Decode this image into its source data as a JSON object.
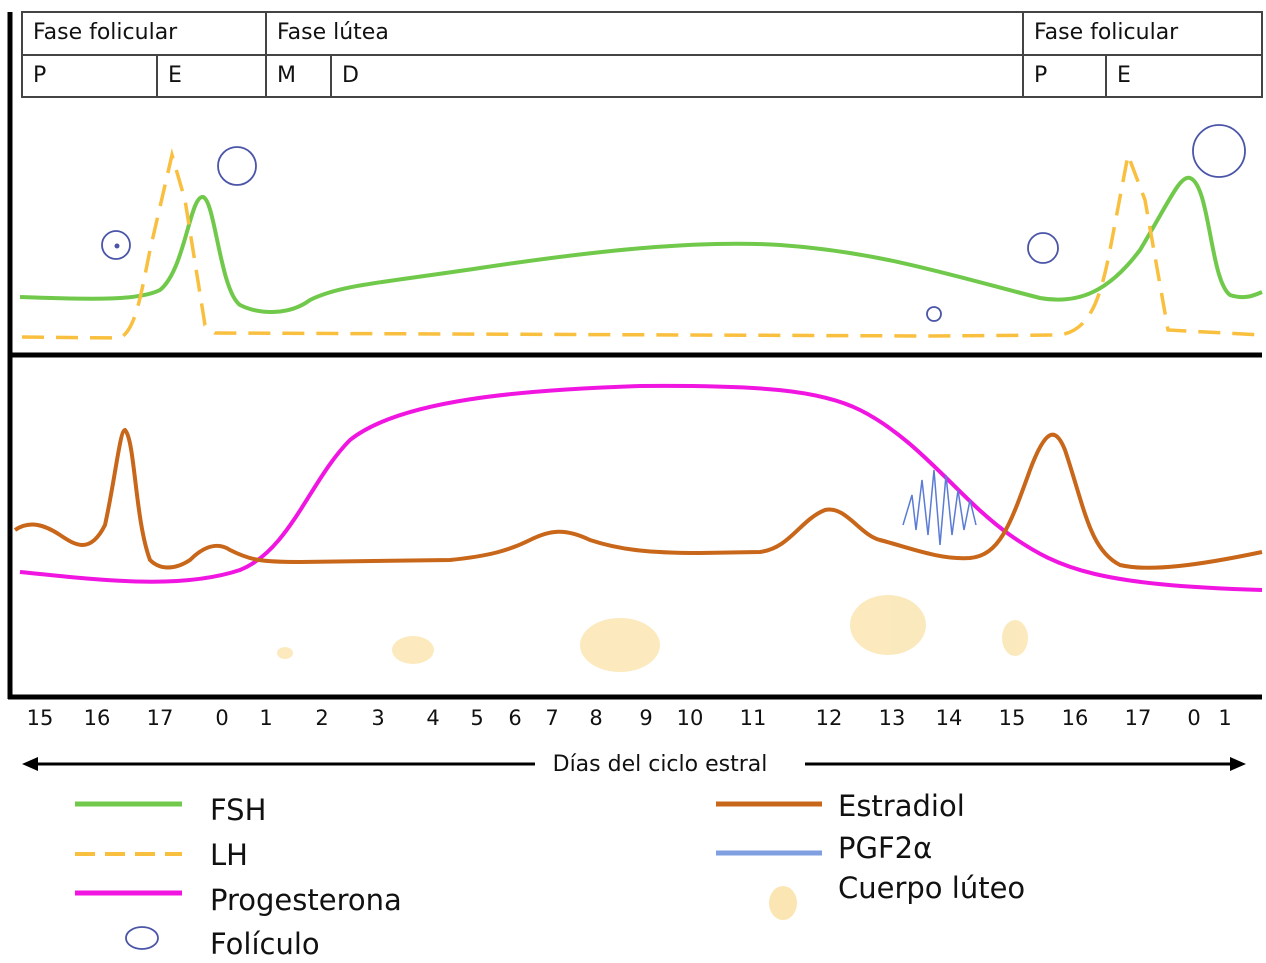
{
  "phases": [
    "Fase folicular",
    "Fase lútea",
    "Fase folicular"
  ],
  "subphases": [
    "P",
    "E",
    "M",
    "D",
    "P",
    "E"
  ],
  "days": [
    "15",
    "16",
    "17",
    "0",
    "1",
    "2",
    "3",
    "4",
    "5",
    "6",
    "7",
    "8",
    "9",
    "10",
    "11",
    "12",
    "13",
    "14",
    "15",
    "16",
    "17",
    "0",
    "1"
  ],
  "axis_label": "Días del ciclo estral",
  "legend": [
    "FSH",
    "LH",
    "Progesterona",
    "Folículo",
    "Estradiol",
    "PGF2α",
    "Cuerpo lúteo"
  ]
}
